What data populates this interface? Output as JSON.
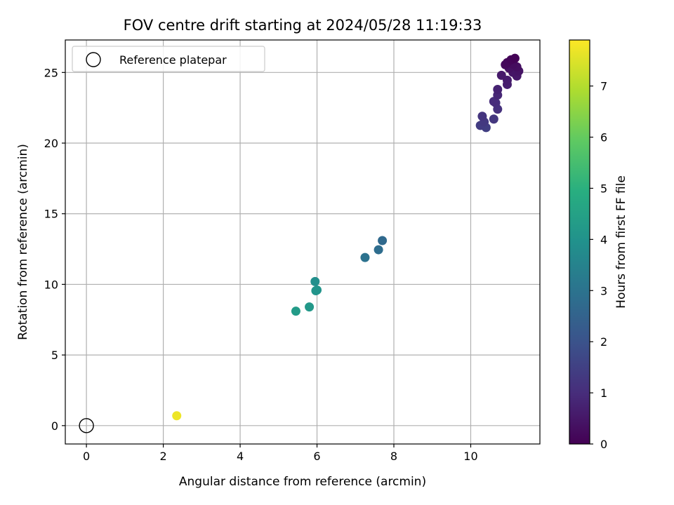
{
  "chart_data": {
    "type": "scatter",
    "title": "FOV centre drift starting at 2024/05/28 11:19:33",
    "xlabel": "Angular distance from reference (arcmin)",
    "ylabel": "Rotation from reference (arcmin)",
    "colorbar_label": "Hours from first FF file",
    "xlim": [
      -0.55,
      11.8
    ],
    "ylim": [
      -1.3,
      27.3
    ],
    "clim": [
      0,
      7.9
    ],
    "x_ticks": [
      0,
      2,
      4,
      6,
      8,
      10
    ],
    "y_ticks": [
      0,
      5,
      10,
      15,
      20,
      25
    ],
    "colorbar_ticks": [
      0,
      1,
      2,
      3,
      4,
      5,
      6,
      7
    ],
    "grid": true,
    "legend": {
      "position": "top-left",
      "entries": [
        "Reference platepar"
      ]
    },
    "reference_point": {
      "x": 0,
      "y": 0
    },
    "points": [
      {
        "x": 11.15,
        "y": 26.0,
        "hours": 0.05
      },
      {
        "x": 11.05,
        "y": 25.9,
        "hours": 0.1
      },
      {
        "x": 10.95,
        "y": 25.7,
        "hours": 0.15
      },
      {
        "x": 10.9,
        "y": 25.55,
        "hours": 0.2
      },
      {
        "x": 11.1,
        "y": 25.6,
        "hours": 0.25
      },
      {
        "x": 11.2,
        "y": 25.4,
        "hours": 0.3
      },
      {
        "x": 11.0,
        "y": 25.3,
        "hours": 0.35
      },
      {
        "x": 11.25,
        "y": 25.1,
        "hours": 0.4
      },
      {
        "x": 11.1,
        "y": 25.0,
        "hours": 0.45
      },
      {
        "x": 11.2,
        "y": 24.75,
        "hours": 0.5
      },
      {
        "x": 10.8,
        "y": 24.8,
        "hours": 0.55
      },
      {
        "x": 10.95,
        "y": 24.45,
        "hours": 0.6
      },
      {
        "x": 10.95,
        "y": 24.15,
        "hours": 0.65
      },
      {
        "x": 10.7,
        "y": 23.8,
        "hours": 0.75
      },
      {
        "x": 10.7,
        "y": 23.4,
        "hours": 0.85
      },
      {
        "x": 10.6,
        "y": 22.95,
        "hours": 1.0
      },
      {
        "x": 10.65,
        "y": 22.85,
        "hours": 1.05
      },
      {
        "x": 10.7,
        "y": 22.4,
        "hours": 1.1
      },
      {
        "x": 10.3,
        "y": 21.9,
        "hours": 1.2
      },
      {
        "x": 10.6,
        "y": 21.7,
        "hours": 1.25
      },
      {
        "x": 10.35,
        "y": 21.5,
        "hours": 1.3
      },
      {
        "x": 10.25,
        "y": 21.25,
        "hours": 1.4
      },
      {
        "x": 10.4,
        "y": 21.1,
        "hours": 1.45
      },
      {
        "x": 7.7,
        "y": 13.1,
        "hours": 2.7
      },
      {
        "x": 7.6,
        "y": 12.45,
        "hours": 2.8
      },
      {
        "x": 7.25,
        "y": 11.9,
        "hours": 2.95
      },
      {
        "x": 5.95,
        "y": 10.2,
        "hours": 3.9
      },
      {
        "x": 6.0,
        "y": 9.6,
        "hours": 4.05
      },
      {
        "x": 5.97,
        "y": 9.55,
        "hours": 4.1
      },
      {
        "x": 5.8,
        "y": 8.4,
        "hours": 4.2
      },
      {
        "x": 5.45,
        "y": 8.1,
        "hours": 4.3
      },
      {
        "x": 2.35,
        "y": 0.7,
        "hours": 7.7
      }
    ]
  }
}
